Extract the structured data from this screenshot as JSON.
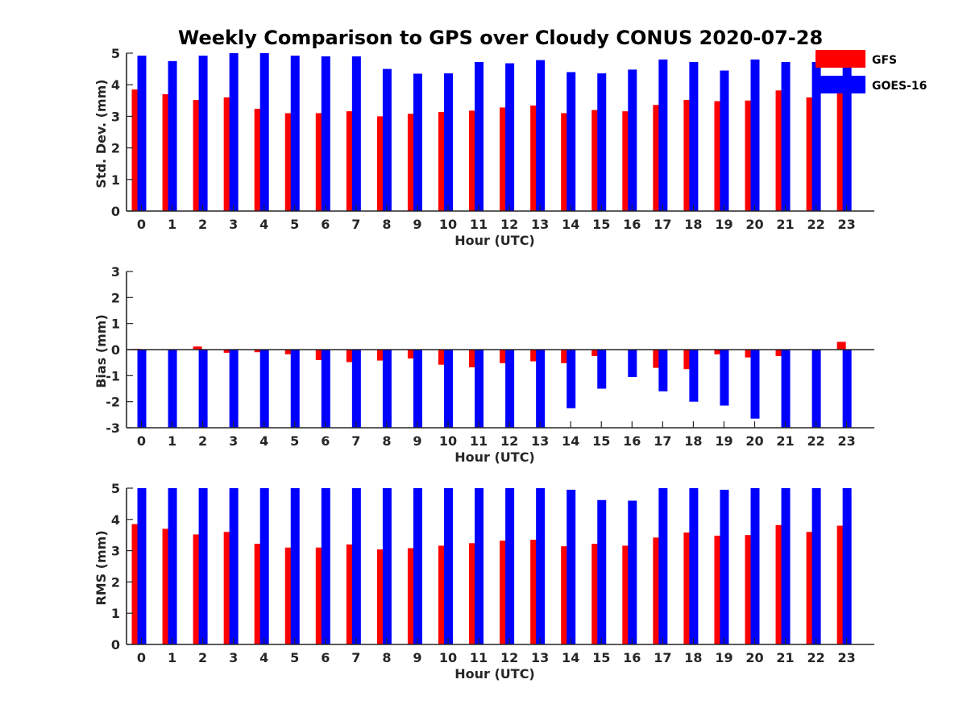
{
  "title": "Weekly Comparison to GPS over Cloudy CONUS 2020-07-28",
  "colors": {
    "GFS": "#ff0000",
    "GOES-16": "#0000ff"
  },
  "legend": {
    "placement": "top-right",
    "entries": [
      "GFS",
      "GOES-16"
    ]
  },
  "chart_data": [
    {
      "type": "bar",
      "title": "Weekly Comparison to GPS over Cloudy CONUS 2020-07-28",
      "categories": [
        "0",
        "1",
        "2",
        "3",
        "4",
        "5",
        "6",
        "7",
        "8",
        "9",
        "10",
        "11",
        "12",
        "13",
        "14",
        "15",
        "16",
        "17",
        "18",
        "19",
        "20",
        "21",
        "22",
        "23"
      ],
      "xlabel": "Hour (UTC)",
      "ylabel": "Std. Dev. (mm)",
      "ylim": [
        0,
        5
      ],
      "yticks": [
        "0",
        "1",
        "2",
        "3",
        "4",
        "5"
      ],
      "series": [
        {
          "name": "GFS",
          "values": [
            3.85,
            3.7,
            3.52,
            3.6,
            3.24,
            3.1,
            3.1,
            3.16,
            3.0,
            3.08,
            3.14,
            3.18,
            3.28,
            3.34,
            3.1,
            3.2,
            3.16,
            3.36,
            3.52,
            3.48,
            3.5,
            3.82,
            3.6,
            3.8
          ]
        },
        {
          "name": "GOES-16",
          "values": [
            4.92,
            4.75,
            4.92,
            5.0,
            5.0,
            4.92,
            4.9,
            4.9,
            4.5,
            4.35,
            4.36,
            4.72,
            4.68,
            4.78,
            4.4,
            4.36,
            4.48,
            4.8,
            4.72,
            4.45,
            4.8,
            4.72,
            4.72,
            4.6
          ]
        }
      ]
    },
    {
      "type": "bar",
      "categories": [
        "0",
        "1",
        "2",
        "3",
        "4",
        "5",
        "6",
        "7",
        "8",
        "9",
        "10",
        "11",
        "12",
        "13",
        "14",
        "15",
        "16",
        "17",
        "18",
        "19",
        "20",
        "21",
        "22",
        "23"
      ],
      "xlabel": "Hour (UTC)",
      "ylabel": "Bias (mm)",
      "ylim": [
        -3,
        3
      ],
      "yticks": [
        "-3",
        "-2",
        "-1",
        "0",
        "1",
        "2",
        "3"
      ],
      "series": [
        {
          "name": "GFS",
          "values": [
            0.03,
            0.0,
            0.12,
            -0.12,
            -0.1,
            -0.18,
            -0.4,
            -0.48,
            -0.42,
            -0.34,
            -0.58,
            -0.68,
            -0.52,
            -0.45,
            -0.52,
            -0.25,
            -0.02,
            -0.7,
            -0.75,
            -0.18,
            -0.3,
            -0.25,
            0.0,
            0.3
          ]
        },
        {
          "name": "GOES-16",
          "values": [
            -3.0,
            -3.0,
            -3.0,
            -3.0,
            -3.0,
            -3.0,
            -3.0,
            -3.0,
            -3.0,
            -3.0,
            -3.0,
            -3.0,
            -3.0,
            -3.0,
            -2.25,
            -1.5,
            -1.05,
            -1.6,
            -2.0,
            -2.15,
            -2.65,
            -3.0,
            -3.0,
            -3.0
          ]
        }
      ]
    },
    {
      "type": "bar",
      "categories": [
        "0",
        "1",
        "2",
        "3",
        "4",
        "5",
        "6",
        "7",
        "8",
        "9",
        "10",
        "11",
        "12",
        "13",
        "14",
        "15",
        "16",
        "17",
        "18",
        "19",
        "20",
        "21",
        "22",
        "23"
      ],
      "xlabel": "Hour (UTC)",
      "ylabel": "RMS (mm)",
      "ylim": [
        0,
        5
      ],
      "yticks": [
        "0",
        "1",
        "2",
        "3",
        "4",
        "5"
      ],
      "series": [
        {
          "name": "GFS",
          "values": [
            3.85,
            3.7,
            3.52,
            3.6,
            3.22,
            3.1,
            3.1,
            3.2,
            3.04,
            3.08,
            3.16,
            3.24,
            3.32,
            3.35,
            3.14,
            3.22,
            3.16,
            3.42,
            3.58,
            3.48,
            3.5,
            3.82,
            3.6,
            3.8
          ]
        },
        {
          "name": "GOES-16",
          "values": [
            5.0,
            5.0,
            5.0,
            5.0,
            5.0,
            5.0,
            5.0,
            5.0,
            5.0,
            5.0,
            5.0,
            5.0,
            5.0,
            5.0,
            4.95,
            4.62,
            4.6,
            5.0,
            5.0,
            4.95,
            5.0,
            5.0,
            5.0,
            5.0
          ]
        }
      ]
    }
  ]
}
